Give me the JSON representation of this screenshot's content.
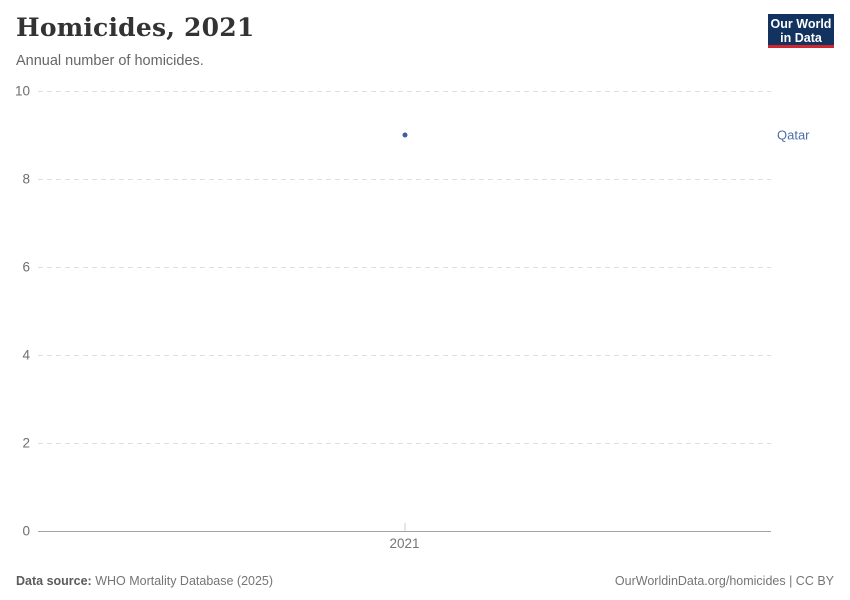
{
  "header": {
    "title": "Homicides, 2021",
    "subtitle": "Annual number of homicides.",
    "logo": {
      "line1": "Our World",
      "line2": "in Data"
    }
  },
  "chart_data": {
    "type": "scatter",
    "title": "Homicides, 2021",
    "subtitle": "Annual number of homicides.",
    "series": [
      {
        "name": "Qatar",
        "x": [
          2021
        ],
        "values": [
          9
        ]
      }
    ],
    "x_ticks": [
      "2021"
    ],
    "y_ticks": [
      0,
      2,
      4,
      6,
      8,
      10
    ],
    "ylim": [
      0,
      10
    ],
    "xlabel": "",
    "ylabel": "",
    "grid": "horizontal-dashed",
    "legend": "entity-label-right",
    "point_color": "#3e5f9e",
    "entity_label_color": "#4d6fa6"
  },
  "footer": {
    "datasource_label": "Data source:",
    "datasource_value": " WHO Mortality Database (2025)",
    "attribution": "OurWorldinData.org/homicides | CC BY"
  },
  "colors": {
    "logo_bg": "#12325f",
    "logo_underline": "#d0262d",
    "gridline": "#dedede",
    "axis": "#a3a3a3",
    "title_text": "#333333",
    "subtitle_text": "#666666",
    "tick_text": "#6e6e6e"
  }
}
